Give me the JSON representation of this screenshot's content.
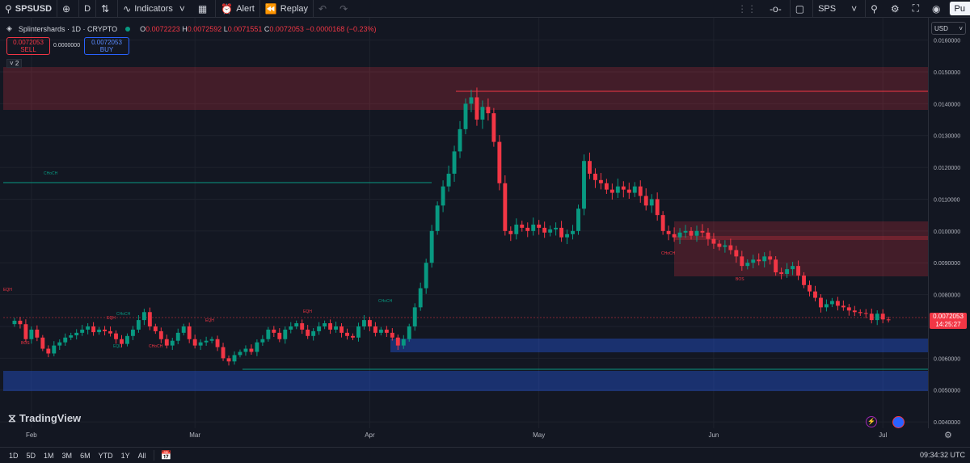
{
  "toolbar": {
    "symbol": "SPSUSD",
    "interval": "D",
    "indicators": "Indicators",
    "alert": "Alert",
    "replay": "Replay",
    "layout_symbol": "SPS",
    "publish": "Pu"
  },
  "legend": {
    "title": "Splintershards · 1D · CRYPTO",
    "o_label": "O",
    "o": "0.0072223",
    "h_label": "H",
    "h": "0.0072592",
    "l_label": "L",
    "l": "0.0071551",
    "c_label": "C",
    "c": "0.0072053",
    "change": "−0.0000168 (−0.23%)"
  },
  "trade": {
    "sell_price": "0.0072053",
    "sell_label": "SELL",
    "spread": "0.0000000",
    "buy_price": "0.0072053",
    "buy_label": "BUY"
  },
  "indicator_collapse": "2",
  "currency": "USD",
  "current_price": {
    "price": "0.0072053",
    "countdown": "14:25:27"
  },
  "branding": "TradingView",
  "range_buttons": [
    "1D",
    "5D",
    "1M",
    "3M",
    "6M",
    "YTD",
    "1Y",
    "All"
  ],
  "clock": "09:34:32 UTC",
  "colors": {
    "up": "#089981",
    "down": "#f23645",
    "background": "#131722"
  },
  "chart_data": {
    "type": "candlestick",
    "y_ticks": [
      "0.0160000",
      "0.0150000",
      "0.0140000",
      "0.0130000",
      "0.0120000",
      "0.0110000",
      "0.0100000",
      "0.0090000",
      "0.0080000",
      "0.0070000",
      "0.0060000",
      "0.0050000",
      "0.0040000"
    ],
    "y_tick_values": [
      0.016,
      0.015,
      0.014,
      0.013,
      0.012,
      0.011,
      0.01,
      0.009,
      0.008,
      0.007,
      0.006,
      0.005,
      0.004
    ],
    "ylim": [
      0.0038,
      0.0167
    ],
    "x_labels": [
      {
        "label": "Feb",
        "day": 0
      },
      {
        "label": "Mar",
        "day": 29
      },
      {
        "label": "Apr",
        "day": 60
      },
      {
        "label": "May",
        "day": 90
      },
      {
        "label": "Jun",
        "day": 121
      },
      {
        "label": "Jul",
        "day": 151
      }
    ],
    "x_range_days": [
      -5,
      159
    ],
    "closes": [
      0.00718,
      0.00707,
      0.0066,
      0.0069,
      0.00665,
      0.0063,
      0.00615,
      0.0064,
      0.0065,
      0.00665,
      0.00672,
      0.0068,
      0.0069,
      0.007,
      0.00682,
      0.0069,
      0.00685,
      0.00678,
      0.0066,
      0.00645,
      0.0067,
      0.0069,
      0.0072,
      0.00745,
      0.007,
      0.00685,
      0.0066,
      0.0064,
      0.00655,
      0.0068,
      0.007,
      0.0066,
      0.0064,
      0.0065,
      0.00655,
      0.0066,
      0.00635,
      0.006,
      0.0059,
      0.0061,
      0.0062,
      0.0063,
      0.0062,
      0.0065,
      0.0066,
      0.0069,
      0.0068,
      0.0066,
      0.0069,
      0.007,
      0.0071,
      0.0069,
      0.0067,
      0.00685,
      0.007,
      0.0071,
      0.0069,
      0.007,
      0.0068,
      0.0067,
      0.00665,
      0.007,
      0.0072,
      0.007,
      0.0068,
      0.0069,
      0.0068,
      0.00665,
      0.0064,
      0.0066,
      0.007,
      0.0076,
      0.0082,
      0.009,
      0.01,
      0.0108,
      0.0114,
      0.0118,
      0.0125,
      0.0132,
      0.014,
      0.0142,
      0.0135,
      0.0139,
      0.0137,
      0.0128,
      0.0115,
      0.01,
      0.0099,
      0.0102,
      0.0101,
      0.01,
      0.0102,
      0.0101,
      0.00995,
      0.01005,
      0.0101,
      0.0098,
      0.0099,
      0.01,
      0.0107,
      0.0122,
      0.0118,
      0.0116,
      0.0115,
      0.0113,
      0.0112,
      0.0114,
      0.0113,
      0.0112,
      0.0114,
      0.0111,
      0.0108,
      0.011,
      0.0105,
      0.01,
      0.0099,
      0.0098,
      0.00995,
      0.01,
      0.00985,
      0.01,
      0.00995,
      0.00975,
      0.0096,
      0.0095,
      0.00955,
      0.0094,
      0.0092,
      0.0089,
      0.009,
      0.0091,
      0.00905,
      0.0092,
      0.0091,
      0.0087,
      0.00865,
      0.0088,
      0.0089,
      0.0086,
      0.0083,
      0.0081,
      0.0079,
      0.0076,
      0.0077,
      0.0078,
      0.00765,
      0.0076,
      0.0075,
      0.00745,
      0.00742,
      0.0074,
      0.0072,
      0.0074,
      0.00722,
      0.00721
    ],
    "annotations": [
      "EQH",
      "EQL",
      "CHoCH",
      "BOS"
    ]
  }
}
